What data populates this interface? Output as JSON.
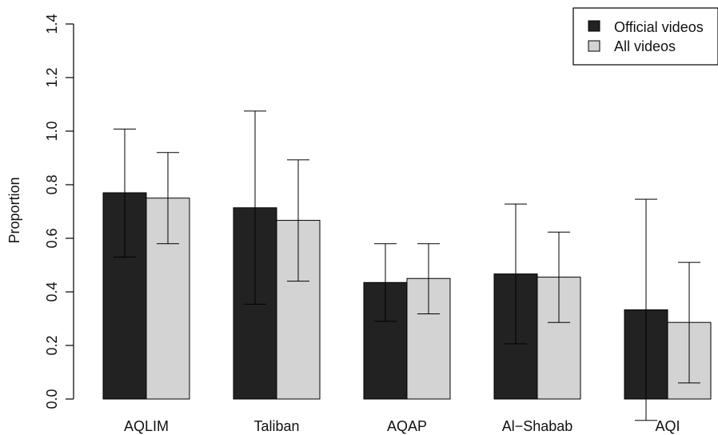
{
  "chart_data": {
    "type": "bar",
    "title": "",
    "xlabel": "",
    "ylabel": "Proportion",
    "ylim": [
      0,
      1.4
    ],
    "yticks": [
      "0.0",
      "0.2",
      "0.4",
      "0.6",
      "0.8",
      "1.0",
      "1.2",
      "1.4"
    ],
    "categories": [
      "AQLIM",
      "Taliban",
      "AQAP",
      "Al−Shabab",
      "AQI"
    ],
    "series": [
      {
        "name": "Official videos",
        "color": "#222222",
        "values": [
          0.77,
          0.714,
          0.435,
          0.467,
          0.333
        ],
        "error_low": [
          0.53,
          0.354,
          0.29,
          0.206,
          -0.08
        ],
        "error_high": [
          1.008,
          1.075,
          0.58,
          0.728,
          0.746
        ]
      },
      {
        "name": "All videos",
        "color": "#d3d3d3",
        "values": [
          0.75,
          0.667,
          0.45,
          0.455,
          0.286
        ],
        "error_low": [
          0.58,
          0.44,
          0.318,
          0.286,
          0.06
        ],
        "error_high": [
          0.92,
          0.893,
          0.58,
          0.623,
          0.51
        ]
      }
    ],
    "legend_position": "top-right",
    "grid": false,
    "error_bars": true
  }
}
